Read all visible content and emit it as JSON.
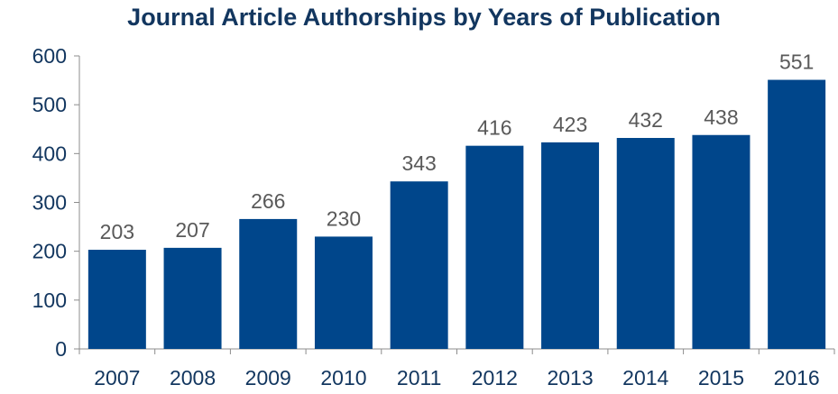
{
  "chart_data": {
    "type": "bar",
    "title": "Journal Article Authorships by Years of Publication",
    "xlabel": "",
    "ylabel": "",
    "categories": [
      "2007",
      "2008",
      "2009",
      "2010",
      "2011",
      "2012",
      "2013",
      "2014",
      "2015",
      "2016"
    ],
    "values": [
      203,
      207,
      266,
      230,
      343,
      416,
      423,
      432,
      438,
      551
    ],
    "ylim": [
      0,
      600
    ],
    "yticks": [
      "0",
      "100",
      "200",
      "300",
      "400",
      "500",
      "600"
    ],
    "grid": false,
    "legend": "none",
    "bar_color": "#00468b",
    "label_color": "#595959",
    "axis_text_color": "#12365f"
  }
}
